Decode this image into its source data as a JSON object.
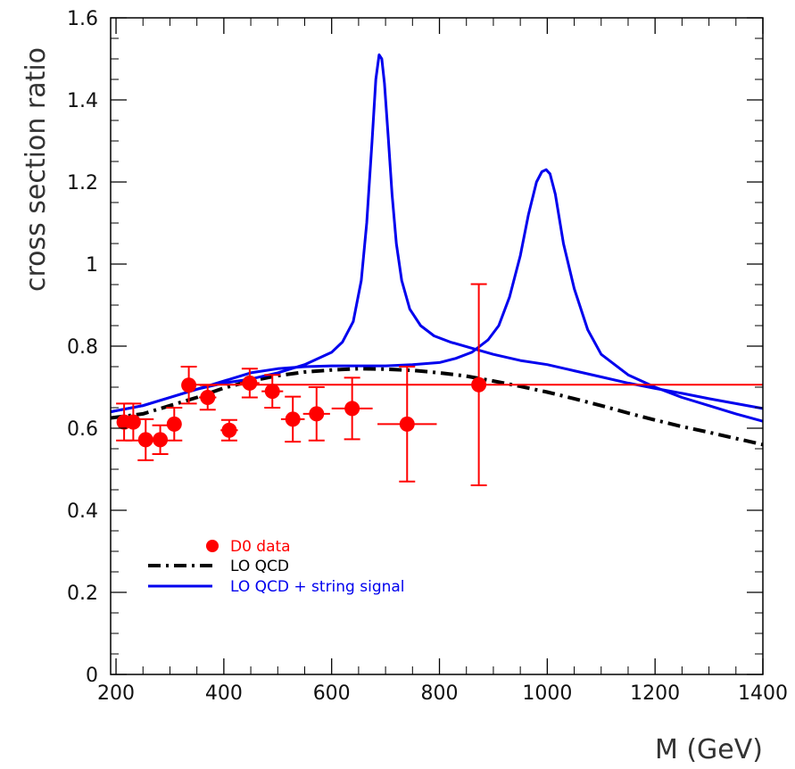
{
  "chart_data": {
    "type": "scatter",
    "title": "",
    "xlabel": "M (GeV)",
    "ylabel": "cross section ratio",
    "xlim": [
      190,
      1400
    ],
    "ylim": [
      0,
      1.6
    ],
    "x_ticks": [
      200,
      400,
      600,
      800,
      1000,
      1200,
      1400
    ],
    "y_ticks": [
      0,
      0.2,
      0.4,
      0.6,
      0.8,
      1.0,
      1.2,
      1.4,
      1.6
    ],
    "x_tick_labels": [
      "200",
      "400",
      "600",
      "800",
      "1000",
      "1200",
      "1400"
    ],
    "y_tick_labels": [
      "0",
      "0.2",
      "0.4",
      "0.6",
      "0.8",
      "1",
      "1.2",
      "1.4",
      "1.6"
    ],
    "grid": false,
    "legend_position": "bottom-left",
    "series": [
      {
        "name": "D0 data",
        "kind": "points_with_errors",
        "color": "#ff0000",
        "points": [
          {
            "x": 215,
            "y": 0.615,
            "xerr": 10,
            "yerr": 0.045
          },
          {
            "x": 232,
            "y": 0.615,
            "xerr": 10,
            "yerr": 0.045
          },
          {
            "x": 255,
            "y": 0.572,
            "xerr": 12,
            "yerr": 0.05
          },
          {
            "x": 282,
            "y": 0.572,
            "xerr": 12,
            "yerr": 0.035
          },
          {
            "x": 308,
            "y": 0.61,
            "xerr": 13,
            "yerr": 0.04
          },
          {
            "x": 335,
            "y": 0.705,
            "xerr": 13,
            "yerr": 0.045
          },
          {
            "x": 370,
            "y": 0.675,
            "xerr": 16,
            "yerr": 0.03
          },
          {
            "x": 410,
            "y": 0.595,
            "xerr": 16,
            "yerr": 0.025
          },
          {
            "x": 448,
            "y": 0.71,
            "xerr": 18,
            "yerr": 0.035
          },
          {
            "x": 490,
            "y": 0.69,
            "xerr": 20,
            "yerr": 0.04
          },
          {
            "x": 528,
            "y": 0.622,
            "xerr": 22,
            "yerr": 0.055
          },
          {
            "x": 572,
            "y": 0.635,
            "xerr": 25,
            "yerr": 0.065
          },
          {
            "x": 638,
            "y": 0.648,
            "xerr": 38,
            "yerr": 0.075
          },
          {
            "x": 740,
            "y": 0.61,
            "xerr": 55,
            "yerr": 0.14
          },
          {
            "x": 873,
            "y": 0.706,
            "xerr": 527,
            "yerr": 0.245
          }
        ]
      },
      {
        "name": "LO QCD",
        "kind": "line",
        "style": "dash-dot",
        "color": "#000000",
        "x": [
          190,
          250,
          300,
          350,
          400,
          450,
          500,
          550,
          600,
          650,
          700,
          750,
          800,
          850,
          900,
          950,
          1000,
          1050,
          1100,
          1150,
          1200,
          1250,
          1300,
          1350,
          1400
        ],
        "y": [
          0.625,
          0.635,
          0.655,
          0.675,
          0.698,
          0.715,
          0.728,
          0.737,
          0.742,
          0.745,
          0.744,
          0.741,
          0.735,
          0.727,
          0.715,
          0.702,
          0.688,
          0.672,
          0.655,
          0.637,
          0.62,
          0.604,
          0.59,
          0.575,
          0.56
        ]
      },
      {
        "name": "LO QCD + string signal",
        "kind": "line",
        "color": "#0000ee",
        "curves": [
          {
            "x": [
              190,
              250,
              300,
              350,
              400,
              450,
              500,
              550,
              600,
              620,
              640,
              655,
              665,
              675,
              682,
              688,
              693,
              698,
              705,
              712,
              720,
              730,
              745,
              765,
              790,
              820,
              860,
              900,
              950,
              1000,
              1050,
              1100,
              1150,
              1200,
              1250,
              1300,
              1350,
              1400
            ],
            "y": [
              0.64,
              0.655,
              0.675,
              0.695,
              0.71,
              0.72,
              0.735,
              0.755,
              0.785,
              0.81,
              0.86,
              0.96,
              1.1,
              1.3,
              1.45,
              1.51,
              1.5,
              1.44,
              1.31,
              1.17,
              1.05,
              0.96,
              0.89,
              0.85,
              0.825,
              0.81,
              0.795,
              0.78,
              0.765,
              0.755,
              0.74,
              0.725,
              0.71,
              0.697,
              0.685,
              0.672,
              0.66,
              0.648
            ]
          },
          {
            "x": [
              190,
              250,
              300,
              350,
              400,
              450,
              500,
              550,
              600,
              650,
              700,
              750,
              800,
              830,
              860,
              890,
              910,
              930,
              950,
              965,
              980,
              990,
              998,
              1005,
              1015,
              1030,
              1050,
              1075,
              1100,
              1150,
              1200,
              1250,
              1300,
              1350,
              1400
            ],
            "y": [
              0.64,
              0.655,
              0.675,
              0.695,
              0.715,
              0.735,
              0.745,
              0.75,
              0.752,
              0.752,
              0.752,
              0.755,
              0.76,
              0.77,
              0.785,
              0.815,
              0.85,
              0.92,
              1.02,
              1.12,
              1.2,
              1.225,
              1.23,
              1.22,
              1.17,
              1.05,
              0.94,
              0.84,
              0.78,
              0.73,
              0.7,
              0.675,
              0.655,
              0.635,
              0.617
            ]
          }
        ]
      }
    ]
  },
  "legend": {
    "items": [
      {
        "label": "D0 data",
        "color": "#ff0000"
      },
      {
        "label": "LO QCD",
        "color": "#000000"
      },
      {
        "label": "LO QCD + string signal",
        "color": "#0000ee"
      }
    ]
  }
}
